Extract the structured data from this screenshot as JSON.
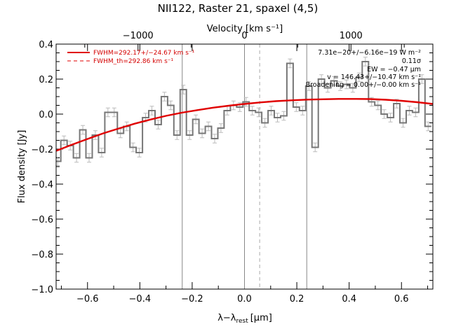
{
  "chart_data": {
    "type": "line",
    "title": "NII122, Raster 21, spaxel (4,5)",
    "xlabel": "λ−λ",
    "xlabel_sub": "rest",
    "xlabel_unit": "[μm]",
    "ylabel": "Flux density [Jy]",
    "top_axis_label": "Velocity [km s⁻¹]",
    "xlim": [
      -0.72,
      0.72
    ],
    "ylim": [
      -1.0,
      0.4
    ],
    "x_ticks": [
      -0.6,
      -0.4,
      -0.2,
      0.0,
      0.2,
      0.4,
      0.6
    ],
    "x_tick_labels": [
      "−0.6",
      "−0.4",
      "−0.2",
      "0.0",
      "0.2",
      "0.4",
      "0.6"
    ],
    "y_ticks": [
      -1.0,
      -0.8,
      -0.6,
      -0.4,
      -0.2,
      0.0,
      0.2,
      0.4
    ],
    "y_tick_labels": [
      "−1.0",
      "−0.8",
      "−0.6",
      "−0.4",
      "−0.2",
      "0.0",
      "0.2",
      "0.4"
    ],
    "top_ticks": [
      -1000,
      0,
      1000
    ],
    "top_tick_labels": [
      "−1000",
      "0",
      "1000"
    ],
    "microns_per_kms": 0.000407,
    "vertical_lines": [
      {
        "x": -0.238,
        "style": "solid"
      },
      {
        "x": 0.0,
        "style": "solid"
      },
      {
        "x": 0.058,
        "style": "dashed"
      },
      {
        "x": 0.238,
        "style": "solid"
      }
    ],
    "series": [
      {
        "kind": "step",
        "color": "#777777",
        "x": [
          -0.714,
          -0.69,
          -0.666,
          -0.642,
          -0.618,
          -0.594,
          -0.57,
          -0.546,
          -0.522,
          -0.498,
          -0.474,
          -0.45,
          -0.426,
          -0.402,
          -0.378,
          -0.354,
          -0.33,
          -0.306,
          -0.282,
          -0.258,
          -0.234,
          -0.21,
          -0.186,
          -0.162,
          -0.138,
          -0.114,
          -0.09,
          -0.066,
          -0.042,
          -0.018,
          0.006,
          0.03,
          0.054,
          0.078,
          0.102,
          0.126,
          0.15,
          0.174,
          0.198,
          0.222,
          0.246,
          0.27,
          0.294,
          0.318,
          0.342,
          0.366,
          0.39,
          0.414,
          0.438,
          0.462,
          0.486,
          0.51,
          0.534,
          0.558,
          0.582,
          0.606,
          0.63,
          0.654,
          0.678,
          0.702
        ],
        "values": [
          -0.27,
          -0.15,
          -0.18,
          -0.25,
          -0.09,
          -0.25,
          -0.12,
          -0.22,
          0.01,
          0.01,
          -0.11,
          -0.07,
          -0.19,
          -0.22,
          -0.02,
          0.02,
          -0.06,
          0.1,
          0.05,
          -0.12,
          0.14,
          -0.12,
          -0.03,
          -0.11,
          -0.07,
          -0.14,
          -0.08,
          0.02,
          0.05,
          0.04,
          0.07,
          0.02,
          0.01,
          -0.05,
          0.02,
          -0.02,
          -0.01,
          0.29,
          0.04,
          0.02,
          0.16,
          -0.19,
          0.2,
          0.15,
          0.19,
          0.16,
          0.17,
          0.15,
          0.21,
          0.3,
          0.07,
          0.05,
          0.0,
          -0.02,
          0.06,
          -0.05,
          0.02,
          0.01,
          0.2,
          -0.07
        ],
        "errors": 0.025
      },
      {
        "kind": "fit",
        "color": "#e00000",
        "x": [
          -0.72,
          -0.66,
          -0.6,
          -0.54,
          -0.48,
          -0.42,
          -0.36,
          -0.3,
          -0.24,
          -0.18,
          -0.12,
          -0.06,
          0.0,
          0.06,
          0.12,
          0.18,
          0.24,
          0.3,
          0.36,
          0.42,
          0.48,
          0.54,
          0.6,
          0.66,
          0.72
        ],
        "values": [
          -0.21,
          -0.175,
          -0.142,
          -0.11,
          -0.082,
          -0.055,
          -0.031,
          -0.01,
          0.008,
          0.023,
          0.037,
          0.048,
          0.058,
          0.067,
          0.074,
          0.079,
          0.083,
          0.085,
          0.087,
          0.087,
          0.086,
          0.082,
          0.076,
          0.068,
          0.058
        ]
      }
    ],
    "legend": {
      "placement": "top-left",
      "entries": [
        {
          "label": "FWHM=292.17+/−24.67 km s⁻¹",
          "style": "solid"
        },
        {
          "label": "FWHM_th=292.86 km s⁻¹",
          "style": "dashed"
        }
      ]
    },
    "annotations": [
      "7.31e−20+/−6.16e−19 W m⁻²",
      "0.11σ",
      "EW = −0.47 μm",
      "v = 146.43+/−10.47 km s⁻¹",
      "Broadening = 0.00+/−0.00 km s⁻¹"
    ],
    "colors": {
      "data": "#777777",
      "errorbar": "#bbbbbb",
      "fit": "#e00000",
      "legend_text": "#d40000",
      "vline_solid": "#888888",
      "vline_dashed": "#aaaaaa"
    }
  }
}
